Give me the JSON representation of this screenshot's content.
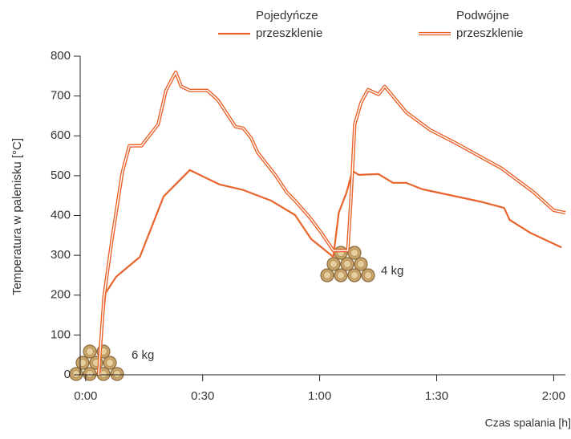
{
  "chart_data": {
    "type": "line",
    "ylabel": "Temperatura w palenisku [°C]",
    "xlabel": "Czas spalania [h]",
    "xlim": [
      -1.4,
      123
    ],
    "ylim": [
      0,
      800
    ],
    "xticks": [
      {
        "value": 0,
        "label": "0:00"
      },
      {
        "value": 30,
        "label": "0:30"
      },
      {
        "value": 60,
        "label": "1:00"
      },
      {
        "value": 90,
        "label": "1:30"
      },
      {
        "value": 120,
        "label": "2:00"
      }
    ],
    "yticks": [
      0,
      100,
      200,
      300,
      400,
      500,
      600,
      700,
      800
    ],
    "series": [
      {
        "name": "Pojedyńcze przeszklenie",
        "color": "#e8642c",
        "style": "single",
        "x": [
          3.7,
          5.1,
          7.8,
          13.9,
          20,
          26.7,
          34.3,
          40.4,
          47.6,
          53.7,
          57.8,
          63.5,
          64.9,
          66.9,
          68.4,
          70,
          75.1,
          78.8,
          82.2,
          86.3,
          101.6,
          107.3,
          108.7,
          113.9,
          122
        ],
        "values": [
          75,
          205,
          246,
          296,
          448,
          514,
          478,
          464,
          437,
          401,
          341,
          296,
          407,
          458,
          512,
          502,
          504,
          482,
          482,
          466,
          434,
          419,
          389,
          357,
          320
        ]
      },
      {
        "name": "Podwójne przeszklenie",
        "color": "#e8642c",
        "style": "double",
        "x": [
          3.3,
          4.7,
          6.7,
          9.4,
          11.2,
          14.3,
          18.6,
          20.6,
          23.1,
          24.5,
          26.7,
          31.2,
          33.9,
          38.4,
          40.4,
          42.4,
          44.1,
          48.6,
          51.6,
          53.7,
          57.3,
          60.4,
          63.5,
          67.2,
          68,
          69,
          70.6,
          72.4,
          75.1,
          76.7,
          82.2,
          88.3,
          95.4,
          106.7,
          114.9,
          120,
          123
        ],
        "values": [
          0,
          196,
          337,
          508,
          575,
          575,
          629,
          714,
          760,
          724,
          714,
          714,
          690,
          623,
          619,
          595,
          558,
          502,
          458,
          437,
          397,
          357,
          312,
          312,
          437,
          629,
          683,
          716,
          704,
          724,
          659,
          615,
          579,
          518,
          458,
          413,
          407
        ]
      }
    ],
    "annotations": [
      "6 kg",
      "4 kg"
    ]
  }
}
